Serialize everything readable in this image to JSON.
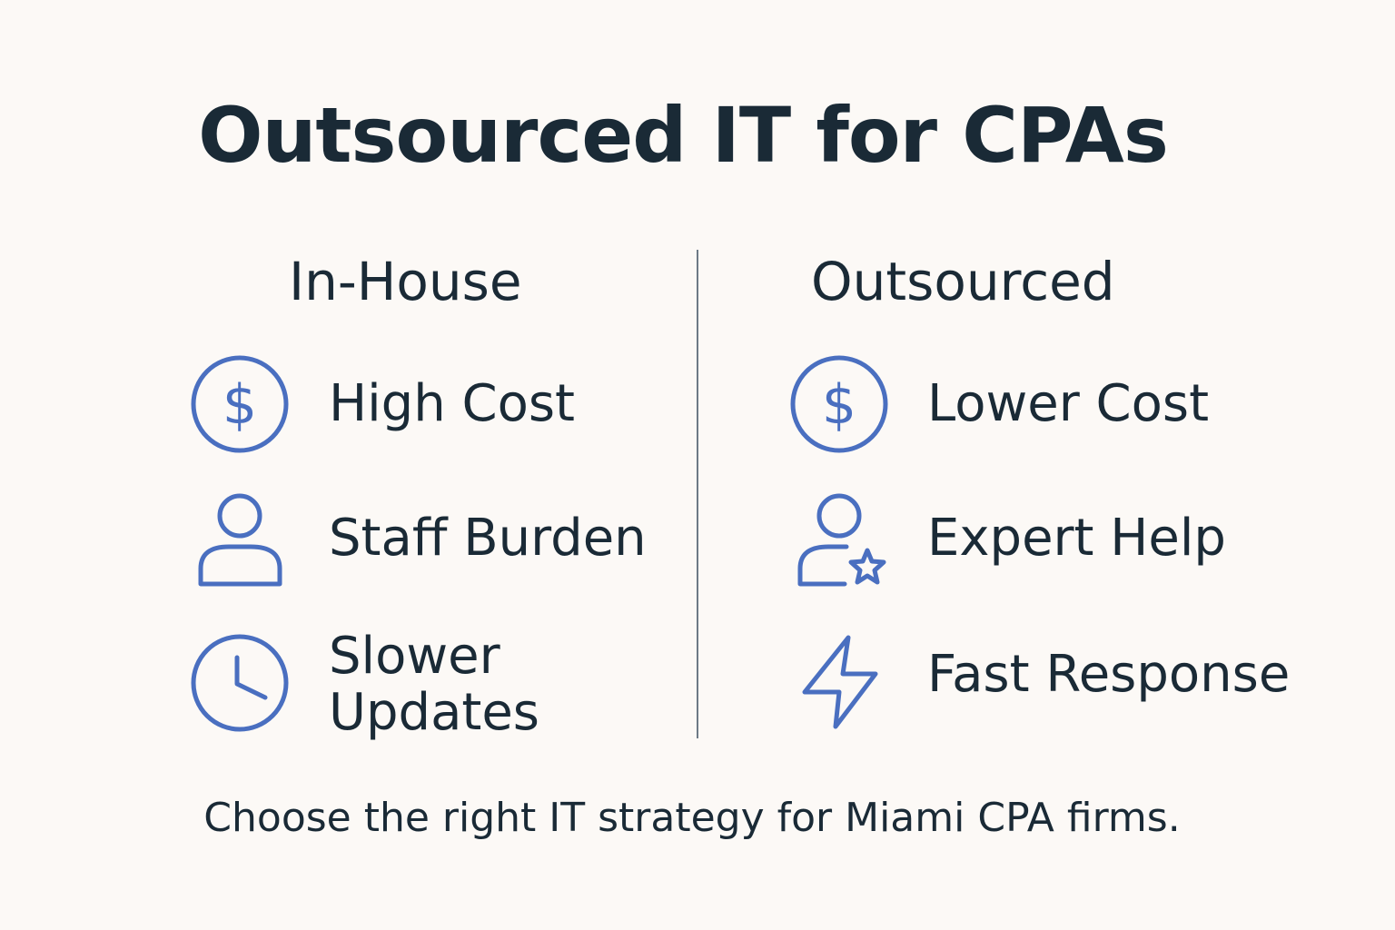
{
  "title": "Outsourced IT for CPAs",
  "accent_color": "#4a6fc0",
  "columns": [
    {
      "heading": "In-House",
      "items": [
        {
          "icon": "dollar-circle-icon",
          "label": "High Cost"
        },
        {
          "icon": "person-icon",
          "label": "Staff Burden"
        },
        {
          "icon": "clock-icon",
          "label_line1": "Slower",
          "label_line2": "Updates"
        }
      ]
    },
    {
      "heading": "Outsourced",
      "items": [
        {
          "icon": "dollar-circle-icon",
          "label": "Lower Cost"
        },
        {
          "icon": "person-star-icon",
          "label": "Expert Help"
        },
        {
          "icon": "lightning-icon",
          "label": "Fast Response"
        }
      ]
    }
  ],
  "footer": "Choose the right IT strategy for Miami CPA firms."
}
